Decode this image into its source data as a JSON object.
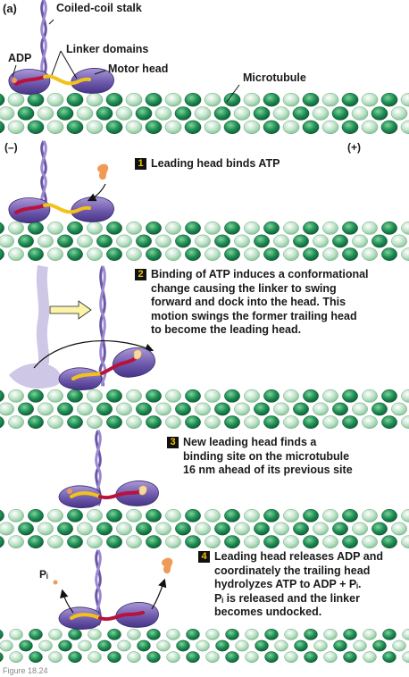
{
  "panel_label": "(a)",
  "labels": {
    "stalk": "Coiled-coil stalk",
    "adp": "ADP",
    "linker": "Linker domains",
    "motor": "Motor head",
    "microtubule": "Microtubule"
  },
  "ends": {
    "minus": "(–)",
    "plus": "(+)"
  },
  "steps": [
    {
      "num": "1",
      "lines": [
        "Leading head binds ATP"
      ]
    },
    {
      "num": "2",
      "lines": [
        "Binding of ATP induces a conformational",
        "change causing the linker to swing",
        "forward and dock into the head. This",
        "motion swings the former trailing head",
        "to become the leading head."
      ]
    },
    {
      "num": "3",
      "lines": [
        "New leading head finds a",
        "binding site on the microtubule",
        "16 nm ahead of its previous site"
      ]
    },
    {
      "num": "4",
      "lines": [
        "Leading head releases ADP and",
        "coordinately the trailing head",
        "hydrolyzes ATP to ADP + Pᵢ.",
        "Pᵢ is released and the linker",
        "becomes undocked."
      ]
    }
  ],
  "pi_label": "Pᵢ",
  "caption": "Figure 18.24",
  "colors": {
    "mt_dark": "#1f8f55",
    "mt_light": "#bfe3c8",
    "head": "#6a55a8",
    "head_light": "#8f7cc4",
    "stalk": "#6a55a8",
    "linker_yellow": "#f2c21a",
    "linker_red": "#b8123d",
    "atp_orange": "#f09a55",
    "ghost": "#cfc7e6",
    "badge": "#f6c200"
  }
}
